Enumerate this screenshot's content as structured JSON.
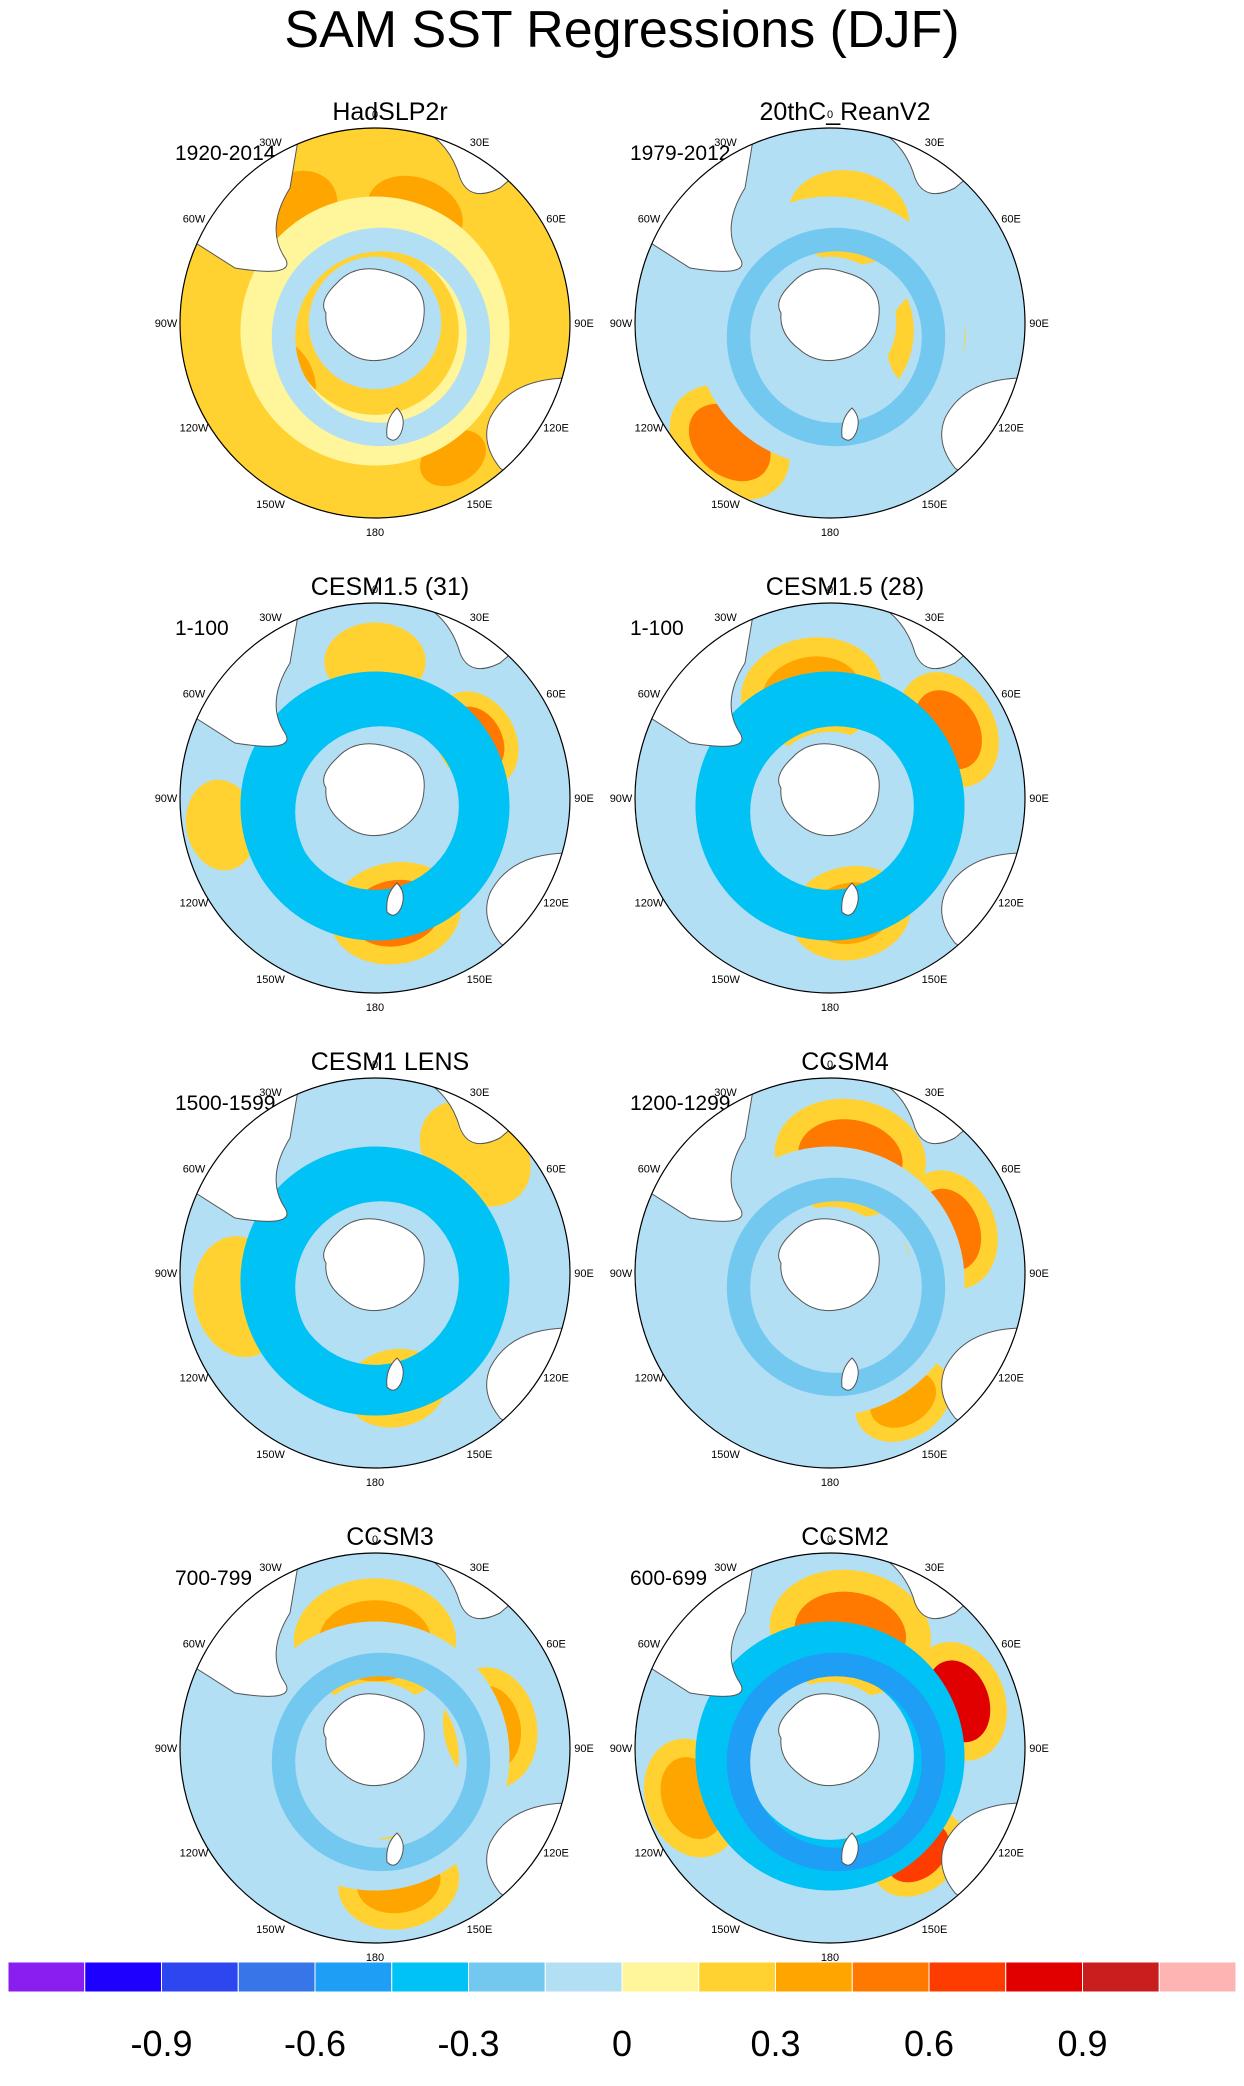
{
  "title": "SAM SST Regressions (DJF)",
  "chart_data": {
    "type": "heatmap",
    "title": "SAM SST Regressions (DJF)",
    "projection": "south-polar-stereographic",
    "longitude_labels": [
      "0",
      "30E",
      "60E",
      "90E",
      "120E",
      "150E",
      "180",
      "150W",
      "120W",
      "90W",
      "60W",
      "30W"
    ],
    "colorbar": {
      "levels": [
        -1.05,
        -0.9,
        -0.75,
        -0.6,
        -0.45,
        -0.3,
        -0.15,
        0,
        0.15,
        0.3,
        0.45,
        0.6,
        0.75,
        0.9,
        1.05
      ],
      "colors": [
        "#8a1ef0",
        "#1e00ff",
        "#2e46f0",
        "#3776e8",
        "#1e9ef5",
        "#00c2f5",
        "#73c8f0",
        "#b3dff5",
        "#fff59a",
        "#ffd232",
        "#ffa500",
        "#ff7800",
        "#ff3c00",
        "#e00000",
        "#c81e1e",
        "#ffb4b4"
      ],
      "tick_values": [
        -0.9,
        -0.6,
        -0.3,
        0,
        0.3,
        0.6,
        0.9
      ],
      "tick_labels": [
        "-0.9",
        "-0.6",
        "-0.3",
        "0",
        "0.3",
        "0.6",
        "0.9"
      ]
    },
    "panels": [
      {
        "name": "HadSLP2r",
        "period": "1920-2014",
        "ring_level": -0.15,
        "ring_angle": 200,
        "outer_level": 0.15,
        "blobs": [
          {
            "lon": -40,
            "r": 0.7,
            "size": 0.16,
            "level": 0.3
          },
          {
            "lon": 20,
            "r": 0.6,
            "size": 0.14,
            "level": 0.3
          },
          {
            "lon": -120,
            "r": 0.55,
            "size": 0.12,
            "level": 0.3
          },
          {
            "lon": 150,
            "r": 0.8,
            "size": 0.1,
            "level": 0.3
          }
        ]
      },
      {
        "name": "20thC_ReanV2",
        "period": "1979-2012",
        "ring_level": -0.3,
        "ring_angle": 120,
        "outer_level": -0.15,
        "blobs": [
          {
            "lon": -140,
            "r": 0.8,
            "size": 0.13,
            "level": 0.45
          },
          {
            "lon": 10,
            "r": 0.55,
            "size": 0.12,
            "level": 0.15
          },
          {
            "lon": 100,
            "r": 0.5,
            "size": 0.1,
            "level": 0.15
          }
        ]
      },
      {
        "name": "CESM1.5 (31)",
        "period": "1-100",
        "ring_level": -0.45,
        "ring_angle": 170,
        "outer_level": -0.15,
        "blobs": [
          {
            "lon": 170,
            "r": 0.6,
            "size": 0.13,
            "level": 0.45
          },
          {
            "lon": 60,
            "r": 0.6,
            "size": 0.1,
            "level": 0.45
          },
          {
            "lon": -100,
            "r": 0.8,
            "size": 0.09,
            "level": 0.15
          },
          {
            "lon": 0,
            "r": 0.7,
            "size": 0.1,
            "level": 0.15
          }
        ]
      },
      {
        "name": "CESM1.5 (28)",
        "period": "1-100",
        "ring_level": -0.45,
        "ring_angle": 170,
        "outer_level": -0.15,
        "blobs": [
          {
            "lon": 170,
            "r": 0.6,
            "size": 0.12,
            "level": 0.3
          },
          {
            "lon": 60,
            "r": 0.7,
            "size": 0.12,
            "level": 0.45
          },
          {
            "lon": -10,
            "r": 0.55,
            "size": 0.14,
            "level": 0.3
          }
        ]
      },
      {
        "name": "CESM1 LENS",
        "period": "1500-1599",
        "ring_level": -0.45,
        "ring_angle": 190,
        "outer_level": -0.15,
        "blobs": [
          {
            "lon": -100,
            "r": 0.7,
            "size": 0.12,
            "level": 0.15
          },
          {
            "lon": 170,
            "r": 0.6,
            "size": 0.1,
            "level": 0.3
          },
          {
            "lon": 40,
            "r": 0.8,
            "size": 0.12,
            "level": 0.15
          }
        ]
      },
      {
        "name": "CCSM4",
        "period": "1200-1299",
        "ring_level": -0.3,
        "ring_angle": 180,
        "outer_level": -0.15,
        "blobs": [
          {
            "lon": 10,
            "r": 0.6,
            "size": 0.15,
            "level": 0.45
          },
          {
            "lon": 70,
            "r": 0.65,
            "size": 0.12,
            "level": 0.45
          },
          {
            "lon": 150,
            "r": 0.75,
            "size": 0.1,
            "level": 0.3
          }
        ]
      },
      {
        "name": "CCSM3",
        "period": "700-799",
        "ring_level": -0.3,
        "ring_angle": 200,
        "outer_level": -0.15,
        "blobs": [
          {
            "lon": 0,
            "r": 0.55,
            "size": 0.16,
            "level": 0.3
          },
          {
            "lon": 80,
            "r": 0.6,
            "size": 0.12,
            "level": 0.3
          },
          {
            "lon": 170,
            "r": 0.7,
            "size": 0.12,
            "level": 0.3
          }
        ]
      },
      {
        "name": "CCSM2",
        "period": "600-699",
        "ring_level": -0.6,
        "ring_angle": 210,
        "outer_level": -0.15,
        "blobs": [
          {
            "lon": 10,
            "r": 0.6,
            "size": 0.16,
            "level": 0.45
          },
          {
            "lon": 70,
            "r": 0.7,
            "size": 0.12,
            "level": 0.75
          },
          {
            "lon": 140,
            "r": 0.7,
            "size": 0.1,
            "level": 0.6
          },
          {
            "lon": -110,
            "r": 0.75,
            "size": 0.12,
            "level": 0.3
          }
        ]
      }
    ]
  }
}
